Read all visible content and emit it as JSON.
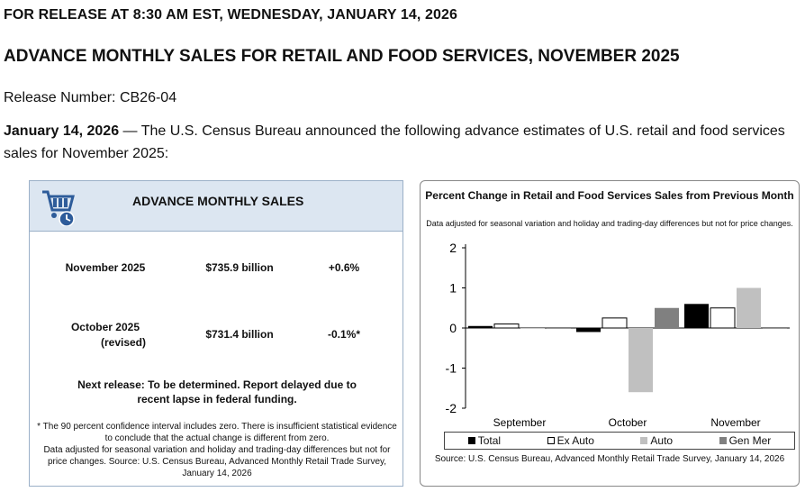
{
  "release_line": "FOR RELEASE AT 8:30 AM EST, WEDNESDAY, JANUARY 14, 2026",
  "headline": "ADVANCE MONTHLY SALES FOR RETAIL AND FOOD SERVICES, NOVEMBER 2025",
  "release_number": "Release Number: CB26-04",
  "intro": {
    "date": "January 14, 2026",
    "text": " — The U.S. Census Bureau announced the following advance estimates of U.S. retail and food services sales for November 2025:"
  },
  "sales_box": {
    "title": "ADVANCE MONTHLY SALES",
    "icon": "shopping-cart-clock-icon",
    "rows": [
      {
        "label": "November 2025",
        "sublabel": "",
        "value": "$735.9 billion",
        "change": "+0.6%"
      },
      {
        "label": "October 2025",
        "sublabel": "(revised)",
        "value": "$731.4 billion",
        "change": "-0.1%*"
      }
    ],
    "next_release": "Next release: To be determined. Report delayed due to recent lapse in federal funding.",
    "footnote_1": "* The 90 percent confidence interval includes zero. There is insufficient statistical evidence to conclude that the actual change is different from zero.",
    "footnote_2": "Data adjusted for seasonal variation and holiday and trading-day differences but not for price changes. Source: U.S. Census Bureau, Advanced Monthly Retail Trade Survey, January 14, 2026"
  },
  "chart_data": {
    "type": "bar",
    "title": "Percent Change in Retail and Food Services Sales from Previous Month",
    "subtitle": "Data adjusted for seasonal variation and holiday and trading-day differences but not for price changes.",
    "categories": [
      "September",
      "October",
      "November"
    ],
    "ylim": [
      -2,
      2
    ],
    "yticks": [
      2,
      1,
      0,
      -1,
      -2
    ],
    "series": [
      {
        "name": "Total",
        "color": "#000000",
        "outline": false,
        "values": [
          0.05,
          -0.1,
          0.6
        ]
      },
      {
        "name": "Ex Auto",
        "color": "#ffffff",
        "outline": true,
        "values": [
          0.1,
          0.25,
          0.5
        ]
      },
      {
        "name": "Auto",
        "color": "#c0c0c0",
        "outline": false,
        "values": [
          0.0,
          -1.6,
          1.0
        ]
      },
      {
        "name": "Gen Mer",
        "color": "#808080",
        "outline": false,
        "values": [
          0.0,
          0.5,
          0.0
        ]
      }
    ],
    "source": "Source: U.S. Census Bureau, Advanced Monthly Retail Trade Survey, January 14, 2026"
  }
}
